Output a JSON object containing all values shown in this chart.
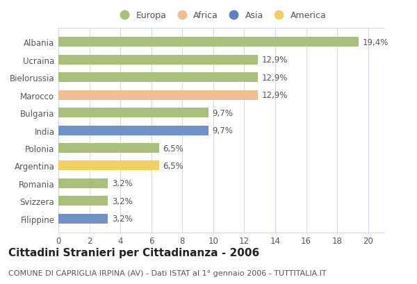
{
  "categories": [
    "Albania",
    "Ucraina",
    "Bielorussia",
    "Marocco",
    "Bulgaria",
    "India",
    "Polonia",
    "Argentina",
    "Romania",
    "Svizzera",
    "Filippine"
  ],
  "values": [
    19.4,
    12.9,
    12.9,
    12.9,
    9.7,
    9.7,
    6.5,
    6.5,
    3.2,
    3.2,
    3.2
  ],
  "labels": [
    "19,4%",
    "12,9%",
    "12,9%",
    "12,9%",
    "9,7%",
    "9,7%",
    "6,5%",
    "6,5%",
    "3,2%",
    "3,2%",
    "3,2%"
  ],
  "colors": [
    "#a8c07a",
    "#a8c07a",
    "#a8c07a",
    "#f0c090",
    "#a8c07a",
    "#7090c8",
    "#a8c07a",
    "#f0d060",
    "#a8c07a",
    "#a8c07a",
    "#7090c8"
  ],
  "legend": [
    {
      "label": "Europa",
      "color": "#a8c07a"
    },
    {
      "label": "Africa",
      "color": "#f0c090"
    },
    {
      "label": "Asia",
      "color": "#6080c0"
    },
    {
      "label": "America",
      "color": "#f0d060"
    }
  ],
  "title": "Cittadini Stranieri per Cittadinanza - 2006",
  "subtitle": "COMUNE DI CAPRIGLIA IRPINA (AV) - Dati ISTAT al 1° gennaio 2006 - TUTTITALIA.IT",
  "xlim": [
    0,
    21
  ],
  "xticks": [
    0,
    2,
    4,
    6,
    8,
    10,
    12,
    14,
    16,
    18,
    20
  ],
  "bg_color": "#ffffff",
  "grid_color": "#d0dde8",
  "bar_height": 0.55,
  "title_fontsize": 11,
  "subtitle_fontsize": 8,
  "label_fontsize": 8.5,
  "tick_fontsize": 8.5,
  "legend_fontsize": 9
}
